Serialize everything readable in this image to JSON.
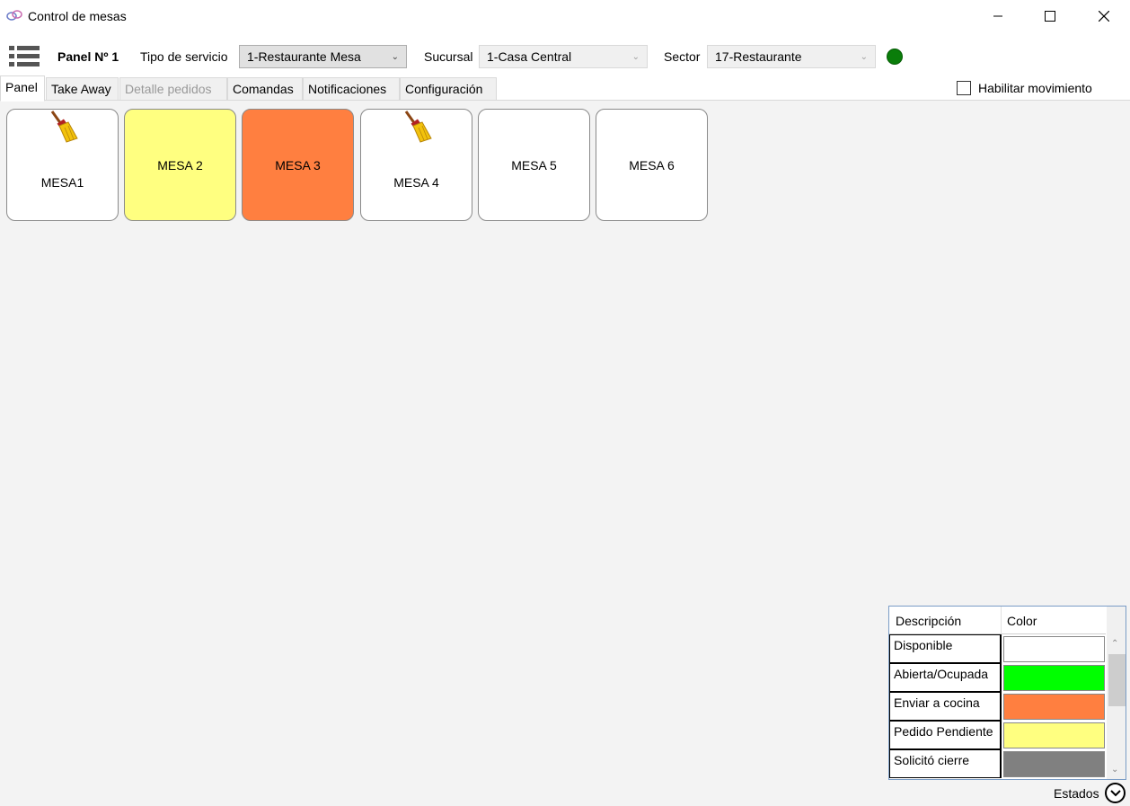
{
  "window": {
    "title": "Control de mesas"
  },
  "toolbar": {
    "panel_label": "Panel Nº 1",
    "service_type_label": "Tipo de servicio",
    "service_type_value": "1-Restaurante Mesa",
    "branch_label": "Sucursal",
    "branch_value": "1-Casa Central",
    "sector_label": "Sector",
    "sector_value": "17-Restaurante",
    "status_color": "#0a7d0a"
  },
  "tabs": [
    {
      "label": "Panel",
      "active": true,
      "enabled": true
    },
    {
      "label": "Take Away",
      "active": false,
      "enabled": true
    },
    {
      "label": "Detalle pedidos",
      "active": false,
      "enabled": false
    },
    {
      "label": "Comandas",
      "active": false,
      "enabled": true
    },
    {
      "label": "Notificaciones",
      "active": false,
      "enabled": true
    },
    {
      "label": "Configuración",
      "active": false,
      "enabled": true
    }
  ],
  "movement_checkbox": {
    "label": "Habilitar movimiento",
    "checked": false
  },
  "tables": [
    {
      "label": "MESA1",
      "color": "#ffffff",
      "icon": "broom-icon"
    },
    {
      "label": "MESA 2",
      "color": "#ffff80",
      "icon": ""
    },
    {
      "label": "MESA 3",
      "color": "#ff7f40",
      "icon": ""
    },
    {
      "label": "MESA 4",
      "color": "#ffffff",
      "icon": "broom-icon"
    },
    {
      "label": "MESA 5",
      "color": "#ffffff",
      "icon": ""
    },
    {
      "label": "MESA 6",
      "color": "#ffffff",
      "icon": ""
    }
  ],
  "legend": {
    "header_description": "Descripción",
    "header_color": "Color",
    "rows": [
      {
        "description": "Disponible",
        "color": "#ffffff"
      },
      {
        "description": "Abierta/Ocupada",
        "color": "#00ff00"
      },
      {
        "description": "Enviar a cocina",
        "color": "#ff7f40"
      },
      {
        "description": "Pedido Pendiente",
        "color": "#ffff80"
      },
      {
        "description": "Solicitó cierre",
        "color": "#808080"
      }
    ],
    "toggle_label": "Estados"
  }
}
